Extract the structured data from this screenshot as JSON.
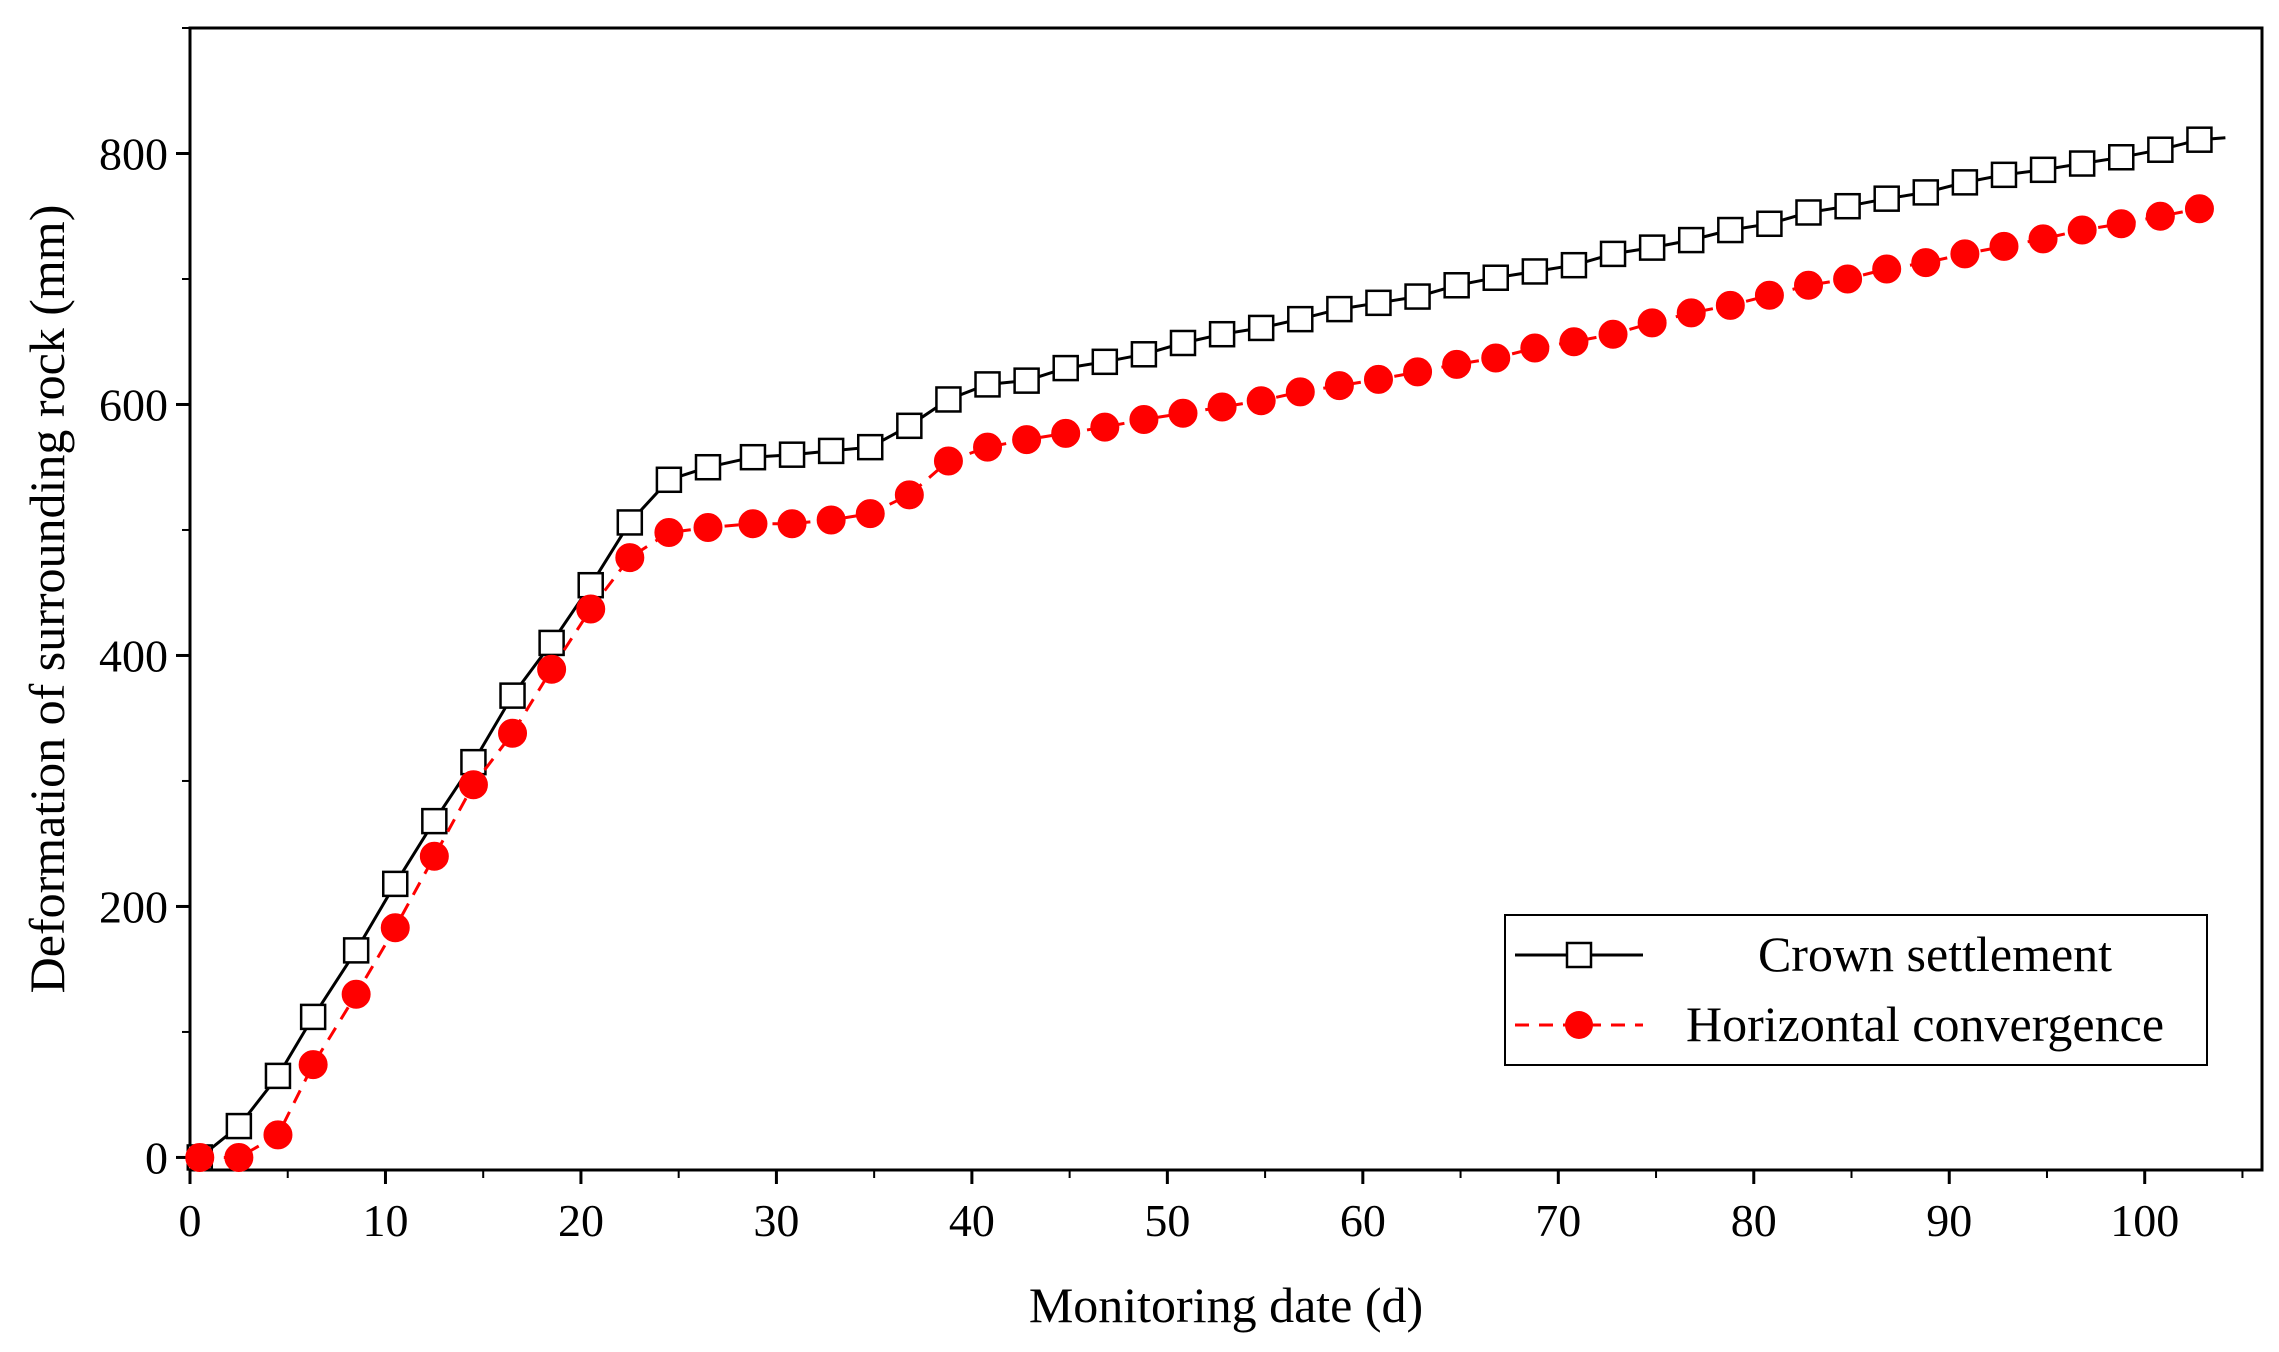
{
  "chart_data": {
    "type": "line",
    "title": "",
    "xlabel": "Monitoring date (d)",
    "ylabel": "Deformation of surrounding rock (mm)",
    "xlim": [
      0,
      106
    ],
    "ylim": [
      -10,
      900
    ],
    "xticks": [
      0,
      10,
      20,
      30,
      40,
      50,
      60,
      70,
      80,
      90,
      100
    ],
    "yticks": [
      0,
      200,
      400,
      600,
      800
    ],
    "legend_position": "bottom-right",
    "series": [
      {
        "name": "Crown settlement",
        "color": "#000000",
        "line_style": "solid",
        "marker": "open-square",
        "x": [
          0.5,
          2.5,
          4.5,
          6.3,
          8.5,
          10.5,
          12.5,
          14.5,
          16.5,
          18.5,
          20.5,
          22.5,
          24.5,
          26.5,
          28.8,
          30.8,
          32.8,
          34.8,
          36.8,
          38.8,
          40.8,
          42.8,
          44.8,
          46.8,
          48.8,
          50.8,
          52.8,
          54.8,
          56.8,
          58.8,
          60.8,
          62.8,
          64.8,
          66.8,
          68.8,
          70.8,
          72.8,
          74.8,
          76.8,
          78.8,
          80.8,
          82.8,
          84.8,
          86.8,
          88.8,
          90.8,
          92.8,
          94.8,
          96.8,
          98.8,
          100.8,
          102.8
        ],
        "y": [
          0,
          25,
          65,
          112,
          165,
          218,
          268,
          315,
          368,
          410,
          456,
          506,
          540,
          550,
          558,
          560,
          563,
          566,
          583,
          604,
          616,
          619,
          629,
          634,
          640,
          649,
          656,
          661,
          668,
          676,
          681,
          686,
          695,
          701,
          706,
          711,
          720,
          725,
          731,
          739,
          744,
          753,
          758,
          764,
          769,
          777,
          783,
          787,
          792,
          797,
          803,
          811
        ]
      },
      {
        "name": "Horizontal convergence",
        "color": "#ff0000",
        "line_style": "dashed",
        "marker": "filled-circle",
        "x": [
          0.5,
          2.5,
          4.5,
          6.3,
          8.5,
          10.5,
          12.5,
          14.5,
          16.5,
          18.5,
          20.5,
          22.5,
          24.5,
          26.5,
          28.8,
          30.8,
          32.8,
          34.8,
          36.8,
          38.8,
          40.8,
          42.8,
          44.8,
          46.8,
          48.8,
          50.8,
          52.8,
          54.8,
          56.8,
          58.8,
          60.8,
          62.8,
          64.8,
          66.8,
          68.8,
          70.8,
          72.8,
          74.8,
          76.8,
          78.8,
          80.8,
          82.8,
          84.8,
          86.8,
          88.8,
          90.8,
          92.8,
          94.8,
          96.8,
          98.8,
          100.8,
          102.8
        ],
        "y": [
          0,
          0,
          18,
          74,
          130,
          183,
          240,
          297,
          338,
          389,
          437,
          478,
          498,
          502,
          505,
          505,
          508,
          513,
          528,
          555,
          566,
          572,
          577,
          582,
          588,
          593,
          598,
          603,
          610,
          615,
          620,
          626,
          632,
          637,
          645,
          650,
          656,
          665,
          673,
          679,
          687,
          695,
          700,
          708,
          713,
          720,
          726,
          732,
          739,
          744,
          750,
          756
        ]
      }
    ]
  }
}
